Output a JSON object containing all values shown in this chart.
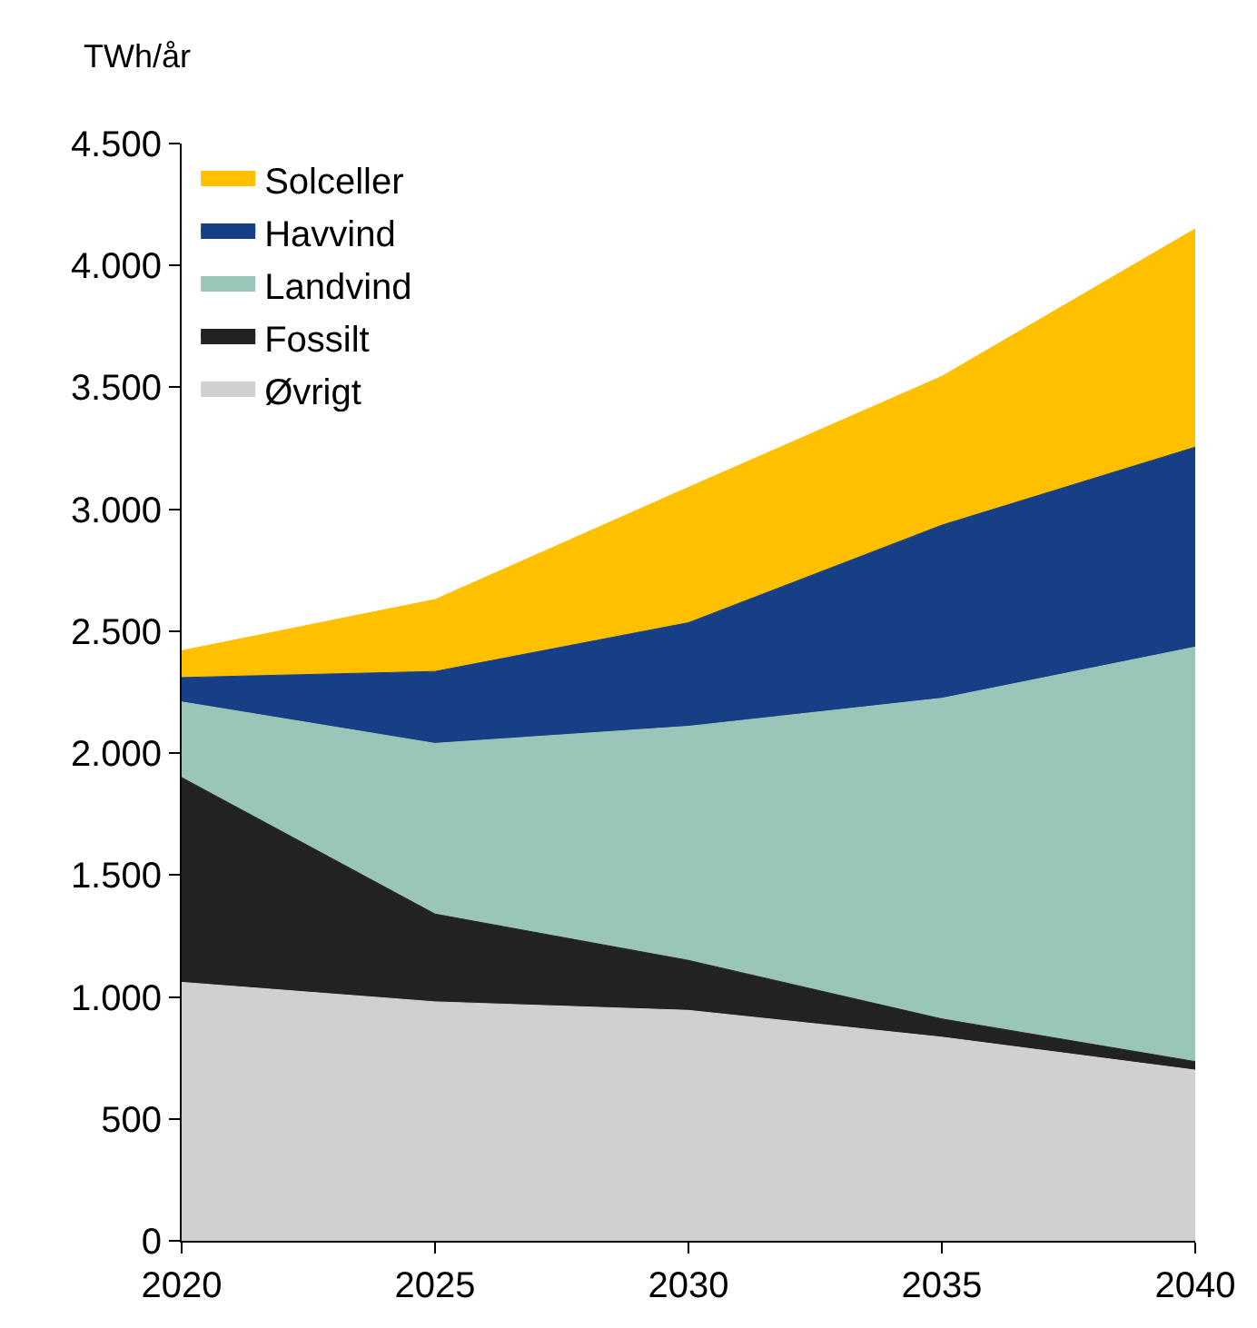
{
  "chart_data": {
    "type": "area",
    "stacked": true,
    "ylabel": "TWh/år",
    "x": [
      2020,
      2025,
      2030,
      2035,
      2040
    ],
    "series": [
      {
        "name": "Øvrigt",
        "color": "#d0d0d0",
        "values": [
          1060,
          980,
          945,
          835,
          700
        ]
      },
      {
        "name": "Fossilt",
        "color": "#222222",
        "values": [
          840,
          360,
          205,
          75,
          35
        ]
      },
      {
        "name": "Landvind",
        "color": "#99c6b9",
        "values": [
          310,
          700,
          960,
          1315,
          1700
        ]
      },
      {
        "name": "Havvind",
        "color": "#173f85",
        "values": [
          100,
          295,
          425,
          710,
          820
        ]
      },
      {
        "name": "Solceller",
        "color": "#ffc000",
        "values": [
          110,
          295,
          555,
          610,
          895
        ]
      }
    ],
    "xlim": [
      2020,
      2040
    ],
    "xticks": [
      2020,
      2025,
      2030,
      2035,
      2040
    ],
    "ylim": [
      0,
      4500
    ],
    "yticks": [
      0,
      500,
      {
        "value": 1000,
        "label": "1.000"
      },
      {
        "value": 1500,
        "label": "1.500"
      },
      {
        "value": 2000,
        "label": "2.000"
      },
      {
        "value": 2500,
        "label": "2.500"
      },
      {
        "value": 3000,
        "label": "3.000"
      },
      {
        "value": 3500,
        "label": "3.500"
      },
      {
        "value": 4000,
        "label": "4.000"
      },
      {
        "value": 4500,
        "label": "4.500"
      }
    ],
    "legend": "top left"
  }
}
